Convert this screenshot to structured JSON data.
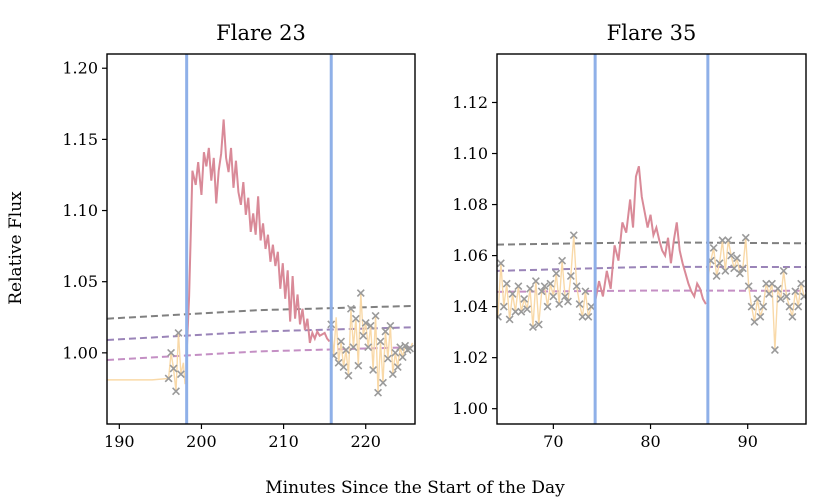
{
  "figure": {
    "xlabel": "Minutes Since the Start of the Day",
    "ylabel": "Relative Flux"
  },
  "chart_data": [
    {
      "type": "line",
      "title": "Flare 23",
      "xlim": [
        188.5,
        226
      ],
      "ylim": [
        0.95,
        1.21
      ],
      "xticks": [
        190,
        200,
        210,
        220
      ],
      "yticks": [
        1.0,
        1.05,
        1.1,
        1.15,
        1.2
      ],
      "ytick_decimals": 2,
      "colors": {
        "flare": "#d98a98",
        "quiet": "#f9d9a8",
        "marker": "#9a9a9a",
        "vline": "#8fb0e8",
        "fit1": "#808080",
        "fit2": "#9a84b8",
        "fit3": "#c48fc4"
      },
      "vlines": [
        198.2,
        215.8
      ],
      "series": [
        {
          "name": "pre-flare quiet",
          "role": "quiet",
          "x": [
            188.5,
            191,
            194,
            196.0,
            196.3,
            196.6,
            196.9,
            197.2,
            197.5,
            197.8,
            198.0
          ],
          "y": [
            0.981,
            0.981,
            0.981,
            0.982,
            1.0,
            0.989,
            0.973,
            1.014,
            0.985,
            0.993,
            0.978
          ]
        },
        {
          "name": "flare",
          "role": "flare",
          "x": [
            198.2,
            198.5,
            198.9,
            199.3,
            199.6,
            200.0,
            200.3,
            200.6,
            200.9,
            201.2,
            201.5,
            201.8,
            202.1,
            202.4,
            202.7,
            203.0,
            203.3,
            203.6,
            203.9,
            204.2,
            204.5,
            204.8,
            205.1,
            205.4,
            205.7,
            206.0,
            206.3,
            206.6,
            206.9,
            207.2,
            207.5,
            207.8,
            208.1,
            208.4,
            208.7,
            209.0,
            209.3,
            209.6,
            209.9,
            210.2,
            210.5,
            210.8,
            211.1,
            211.4,
            211.7,
            212.0,
            212.3,
            212.6,
            212.9,
            213.2,
            213.5,
            213.8,
            214.1,
            214.4,
            214.7,
            215.0,
            215.3,
            215.6
          ],
          "y": [
            1.0,
            1.04,
            1.128,
            1.118,
            1.134,
            1.111,
            1.141,
            1.131,
            1.144,
            1.121,
            1.137,
            1.105,
            1.128,
            1.14,
            1.164,
            1.137,
            1.127,
            1.144,
            1.116,
            1.135,
            1.113,
            1.104,
            1.12,
            1.097,
            1.109,
            1.085,
            1.098,
            1.083,
            1.11,
            1.079,
            1.091,
            1.073,
            1.083,
            1.064,
            1.076,
            1.061,
            1.071,
            1.045,
            1.063,
            1.038,
            1.058,
            1.022,
            1.054,
            1.024,
            1.041,
            1.02,
            1.031,
            1.016,
            1.024,
            1.007,
            1.014,
            1.01,
            1.015,
            1.012,
            1.013,
            1.014,
            1.01,
            1.008
          ]
        },
        {
          "name": "post-flare quiet",
          "role": "quiet",
          "x": [
            215.8,
            216.1,
            216.4,
            216.7,
            217.0,
            217.3,
            217.6,
            217.9,
            218.2,
            218.5,
            218.8,
            219.1,
            219.4,
            219.7,
            220.0,
            220.3,
            220.6,
            220.9,
            221.2,
            221.5,
            221.8,
            222.1,
            222.4,
            222.7,
            223.0,
            223.3,
            223.6,
            223.9,
            224.2,
            224.5,
            224.8,
            225.1,
            225.4,
            225.7
          ],
          "y": [
            1.02,
            0.998,
            1.025,
            0.993,
            1.008,
            0.99,
            1.002,
            0.984,
            1.031,
            1.004,
            1.024,
            0.991,
            1.042,
            1.012,
            1.021,
            1.004,
            1.019,
            0.988,
            1.026,
            0.972,
            1.008,
            0.979,
            1.015,
            0.996,
            1.019,
            0.985,
            1.0,
            0.99,
            1.004,
            0.997,
            1.005,
            1.002,
            1.003,
            1.007
          ]
        }
      ],
      "markers_x": [
        196.0,
        196.3,
        196.6,
        196.9,
        197.2,
        197.5,
        215.8,
        216.1,
        216.7,
        217.0,
        217.3,
        217.6,
        217.9,
        218.2,
        218.5,
        218.8,
        219.1,
        219.4,
        219.7,
        220.0,
        220.3,
        220.6,
        220.9,
        221.2,
        221.5,
        221.8,
        222.1,
        222.4,
        222.7,
        223.0,
        223.3,
        223.6,
        223.9,
        224.2,
        224.5,
        224.8,
        225.1,
        225.4
      ],
      "markers_y": [
        0.982,
        1.0,
        0.989,
        0.973,
        1.014,
        0.985,
        1.02,
        0.998,
        0.993,
        1.008,
        0.99,
        1.002,
        0.984,
        1.031,
        1.004,
        1.024,
        0.991,
        1.042,
        1.012,
        1.021,
        1.004,
        1.019,
        0.988,
        1.026,
        0.972,
        1.008,
        0.979,
        1.015,
        0.996,
        1.019,
        0.985,
        1.0,
        0.99,
        1.004,
        0.997,
        1.005,
        1.002,
        1.003
      ],
      "fits": [
        {
          "name": "fit-gray",
          "role": "fit1",
          "x": [
            188.5,
            207,
            226
          ],
          "y": [
            1.024,
            1.03,
            1.033
          ]
        },
        {
          "name": "fit-purple",
          "role": "fit2",
          "x": [
            188.5,
            207,
            226
          ],
          "y": [
            1.009,
            1.015,
            1.018
          ]
        },
        {
          "name": "fit-pink",
          "role": "fit3",
          "x": [
            188.5,
            207,
            226
          ],
          "y": [
            0.995,
            1.001,
            1.004
          ]
        }
      ]
    },
    {
      "type": "line",
      "title": "Flare 35",
      "xlim": [
        64.2,
        96
      ],
      "ylim": [
        0.994,
        1.139
      ],
      "xticks": [
        70,
        80,
        90
      ],
      "yticks": [
        1.0,
        1.02,
        1.04,
        1.06,
        1.08,
        1.1,
        1.12
      ],
      "ytick_decimals": 2,
      "colors": {
        "flare": "#d98a98",
        "quiet": "#f9d9a8",
        "marker": "#9a9a9a",
        "vline": "#8fb0e8",
        "fit1": "#808080",
        "fit2": "#9a84b8",
        "fit3": "#c48fc4"
      },
      "vlines": [
        74.3,
        85.9
      ],
      "series": [
        {
          "name": "pre-flare quiet",
          "role": "quiet",
          "x": [
            64.3,
            64.6,
            64.9,
            65.2,
            65.5,
            65.8,
            66.1,
            66.4,
            66.7,
            67.0,
            67.3,
            67.6,
            67.9,
            68.2,
            68.5,
            68.8,
            69.1,
            69.4,
            69.7,
            70.0,
            70.3,
            70.6,
            70.9,
            71.2,
            71.5,
            71.8,
            72.1,
            72.4,
            72.7,
            73.0,
            73.3,
            73.6,
            73.9,
            74.2
          ],
          "y": [
            1.036,
            1.057,
            1.04,
            1.049,
            1.035,
            1.045,
            1.038,
            1.048,
            1.038,
            1.043,
            1.039,
            1.047,
            1.032,
            1.05,
            1.033,
            1.046,
            1.048,
            1.04,
            1.049,
            1.044,
            1.053,
            1.041,
            1.058,
            1.044,
            1.042,
            1.052,
            1.068,
            1.048,
            1.041,
            1.036,
            1.046,
            1.036,
            1.04,
            1.039
          ]
        },
        {
          "name": "flare",
          "role": "flare",
          "x": [
            74.3,
            74.7,
            75.1,
            75.5,
            75.9,
            76.3,
            76.7,
            77.1,
            77.5,
            77.9,
            78.2,
            78.5,
            78.8,
            79.1,
            79.4,
            79.7,
            80.0,
            80.3,
            80.6,
            80.9,
            81.2,
            81.5,
            81.8,
            82.1,
            82.4,
            82.7,
            83.0,
            83.3,
            83.6,
            83.9,
            84.2,
            84.5,
            84.8,
            85.1,
            85.4,
            85.7
          ],
          "y": [
            1.042,
            1.05,
            1.044,
            1.054,
            1.047,
            1.064,
            1.058,
            1.073,
            1.069,
            1.082,
            1.071,
            1.091,
            1.095,
            1.083,
            1.077,
            1.071,
            1.076,
            1.068,
            1.071,
            1.066,
            1.062,
            1.06,
            1.067,
            1.057,
            1.066,
            1.073,
            1.062,
            1.057,
            1.053,
            1.049,
            1.046,
            1.044,
            1.049,
            1.047,
            1.043,
            1.041
          ]
        },
        {
          "name": "post-flare quiet",
          "role": "quiet",
          "x": [
            85.9,
            86.2,
            86.5,
            86.8,
            87.1,
            87.4,
            87.7,
            88.0,
            88.3,
            88.6,
            88.9,
            89.2,
            89.5,
            89.8,
            90.1,
            90.4,
            90.7,
            91.0,
            91.3,
            91.6,
            91.9,
            92.2,
            92.5,
            92.8,
            93.1,
            93.4,
            93.7,
            94.0,
            94.3,
            94.6,
            94.9,
            95.2,
            95.5,
            95.8
          ],
          "y": [
            1.051,
            1.058,
            1.063,
            1.052,
            1.057,
            1.066,
            1.054,
            1.066,
            1.06,
            1.055,
            1.059,
            1.053,
            1.055,
            1.067,
            1.048,
            1.04,
            1.034,
            1.043,
            1.036,
            1.04,
            1.049,
            1.045,
            1.049,
            1.023,
            1.047,
            1.043,
            1.054,
            1.044,
            1.04,
            1.036,
            1.046,
            1.04,
            1.049,
            1.044
          ]
        }
      ],
      "markers_x": [
        64.3,
        64.6,
        64.9,
        65.2,
        65.5,
        65.8,
        66.1,
        66.4,
        66.7,
        67.0,
        67.3,
        67.6,
        67.9,
        68.2,
        68.5,
        68.8,
        69.1,
        69.4,
        69.7,
        70.0,
        70.3,
        70.6,
        70.9,
        71.2,
        71.5,
        71.8,
        72.1,
        72.4,
        72.7,
        73.0,
        73.3,
        73.6,
        73.9,
        86.2,
        86.5,
        86.8,
        87.1,
        87.4,
        87.7,
        88.0,
        88.3,
        88.6,
        88.9,
        89.2,
        89.5,
        89.8,
        90.1,
        90.4,
        90.7,
        91.0,
        91.3,
        91.6,
        91.9,
        92.2,
        92.5,
        92.8,
        93.1,
        93.4,
        93.7,
        94.0,
        94.3,
        94.6,
        94.9,
        95.2,
        95.5,
        95.8
      ],
      "markers_y": [
        1.036,
        1.057,
        1.04,
        1.049,
        1.035,
        1.045,
        1.038,
        1.048,
        1.038,
        1.043,
        1.039,
        1.047,
        1.032,
        1.05,
        1.033,
        1.046,
        1.048,
        1.04,
        1.049,
        1.044,
        1.053,
        1.041,
        1.058,
        1.044,
        1.042,
        1.052,
        1.068,
        1.048,
        1.041,
        1.036,
        1.046,
        1.036,
        1.04,
        1.058,
        1.063,
        1.052,
        1.057,
        1.066,
        1.054,
        1.066,
        1.06,
        1.055,
        1.059,
        1.053,
        1.055,
        1.067,
        1.048,
        1.04,
        1.034,
        1.043,
        1.036,
        1.04,
        1.049,
        1.045,
        1.049,
        1.023,
        1.047,
        1.043,
        1.054,
        1.044,
        1.04,
        1.036,
        1.046,
        1.04,
        1.049,
        1.044
      ],
      "fits": [
        {
          "name": "fit-gray",
          "role": "fit1",
          "x": [
            64.2,
            80,
            96
          ],
          "y": [
            1.0643,
            1.0652,
            1.0648
          ]
        },
        {
          "name": "fit-purple",
          "role": "fit2",
          "x": [
            64.2,
            80,
            96
          ],
          "y": [
            1.054,
            1.0556,
            1.0555
          ]
        },
        {
          "name": "fit-pink",
          "role": "fit3",
          "x": [
            64.2,
            80,
            96
          ],
          "y": [
            1.0458,
            1.0463,
            1.0462
          ]
        }
      ]
    }
  ]
}
